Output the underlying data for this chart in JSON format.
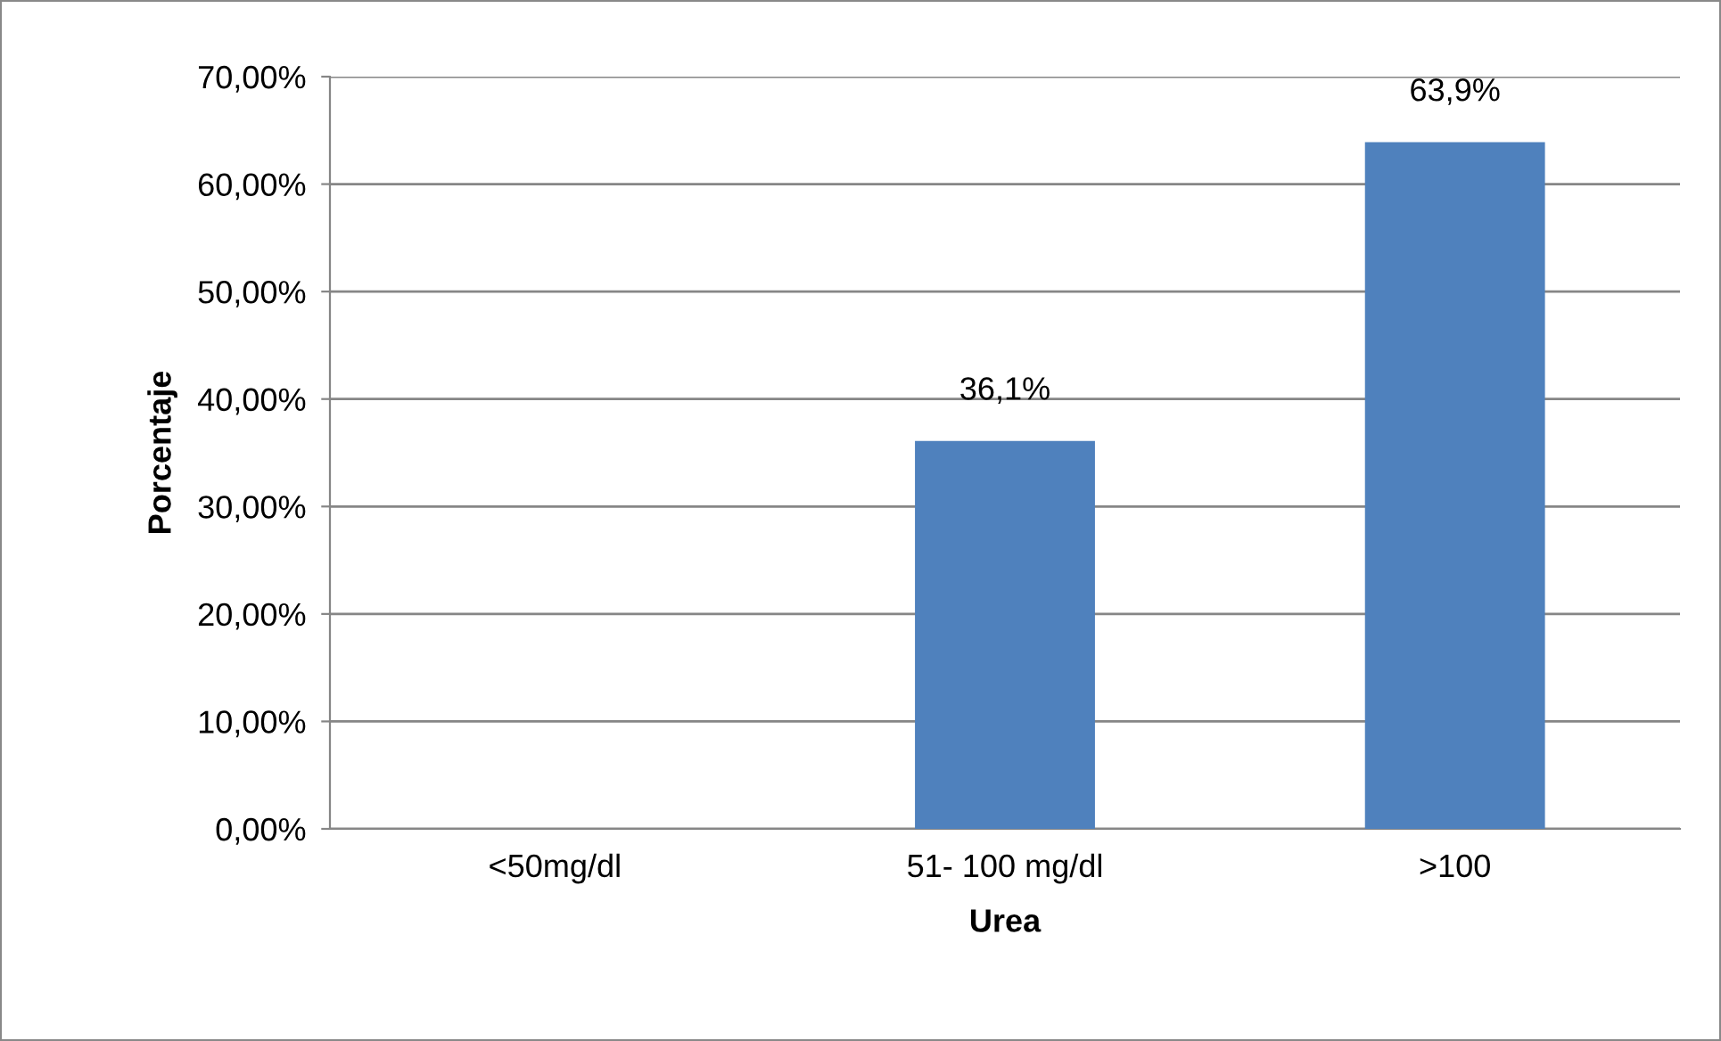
{
  "chart_data": {
    "type": "bar",
    "xlabel": "Urea",
    "ylabel": "Porcentaje",
    "categories": [
      "<50mg/dl",
      "51- 100 mg/dl",
      ">100"
    ],
    "series": [
      {
        "color": "#4f81bd",
        "values": [
          0,
          36.1,
          63.9
        ],
        "value_labels": [
          null,
          "36,1%",
          "63,9%"
        ]
      }
    ],
    "ylim": [
      0,
      70
    ],
    "yticks": [
      {
        "value": 0,
        "label": "0,00%"
      },
      {
        "value": 10,
        "label": "10,00%"
      },
      {
        "value": 20,
        "label": "20,00%"
      },
      {
        "value": 30,
        "label": "30,00%"
      },
      {
        "value": 40,
        "label": "40,00%"
      },
      {
        "value": 50,
        "label": "50,00%"
      },
      {
        "value": 60,
        "label": "60,00%"
      },
      {
        "value": 70,
        "label": "70,00%"
      }
    ],
    "grid": "y",
    "legend": false
  }
}
